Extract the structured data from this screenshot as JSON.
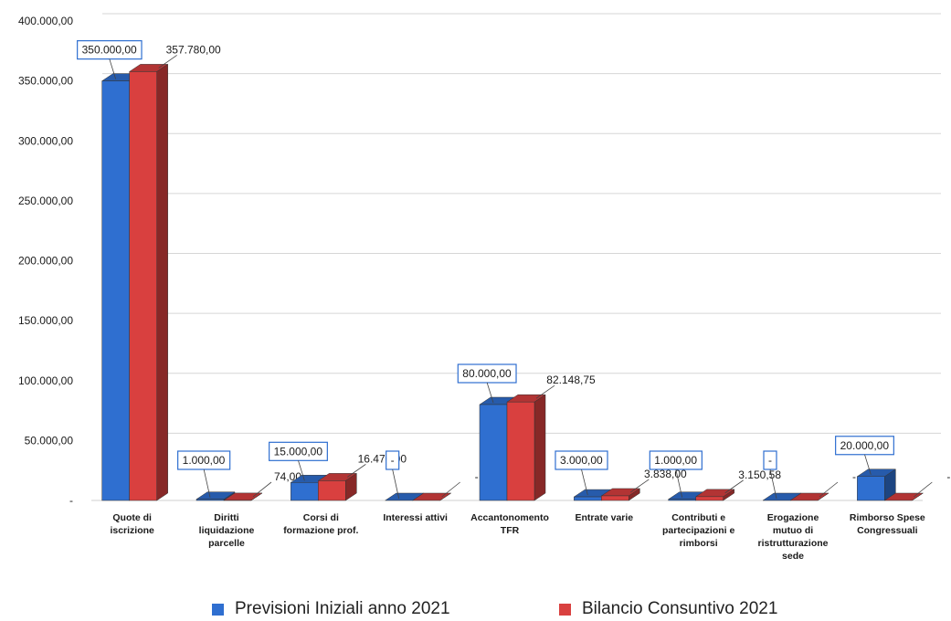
{
  "chart_data": {
    "type": "bar",
    "style": "3d-clustered-column",
    "yticks": [
      "-",
      "50.000,00",
      "100.000,00",
      "150.000,00",
      "200.000,00",
      "250.000,00",
      "300.000,00",
      "350.000,00",
      "400.000,00"
    ],
    "ylim": [
      0,
      400000
    ],
    "grid": true,
    "legend_position": "bottom",
    "categories": [
      [
        "Quote di",
        "iscrizione"
      ],
      [
        "Diritti",
        "liquidazione",
        "parcelle"
      ],
      [
        "Corsi di",
        "formazione prof."
      ],
      [
        "Interessi attivi"
      ],
      [
        "Accantonomento",
        "TFR"
      ],
      [
        "Entrate varie"
      ],
      [
        "Contributi e",
        "partecipazioni e",
        "rimborsi"
      ],
      [
        "Erogazione",
        "mutuo di",
        "ristrutturazione",
        "sede"
      ],
      [
        "Rimborso Spese",
        "Congressuali"
      ]
    ],
    "series": [
      {
        "name": "Previsioni Iniziali anno 2021",
        "color": "#2f6fd0",
        "values": [
          350000,
          1000,
          15000,
          0,
          80000,
          3000,
          1000,
          0,
          20000
        ],
        "labels": [
          "350.000,00",
          "1.000,00",
          "15.000,00",
          "-",
          "80.000,00",
          "3.000,00",
          "1.000,00",
          "-",
          "20.000,00"
        ]
      },
      {
        "name": "Bilancio Consuntivo 2021",
        "color": "#d9403f",
        "values": [
          357780,
          74,
          16470,
          0,
          82148.75,
          3838,
          3150.58,
          0,
          0
        ],
        "labels": [
          "357.780,00",
          "74,00",
          "16.470,00",
          "-",
          "82.148,75",
          "3.838,00",
          "3.150,58",
          "-",
          "-"
        ]
      }
    ]
  }
}
